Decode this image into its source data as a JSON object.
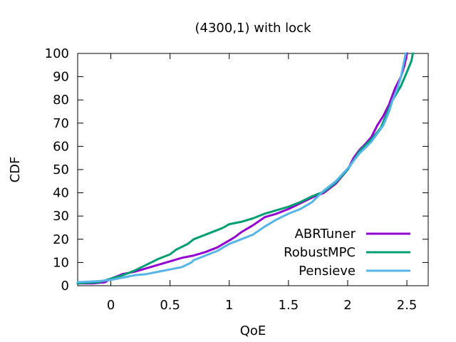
{
  "chart_data": {
    "type": "line",
    "title": "(4300,1) with lock",
    "xlabel": "QoE",
    "ylabel": "CDF",
    "xlim": [
      -0.28,
      2.68
    ],
    "ylim": [
      0,
      100
    ],
    "x_ticks": [
      "0",
      "0.5",
      "1",
      "1.5",
      "2",
      "2.5"
    ],
    "y_ticks": [
      "0",
      "10",
      "20",
      "30",
      "40",
      "50",
      "60",
      "70",
      "80",
      "90",
      "100"
    ],
    "x_tick_values": [
      0,
      0.5,
      1,
      1.5,
      2,
      2.5
    ],
    "y_tick_values": [
      0,
      10,
      20,
      30,
      40,
      50,
      60,
      70,
      80,
      90,
      100
    ],
    "grid": false,
    "legend_position": "bottom-right",
    "series": [
      {
        "name": "ABRTuner",
        "color": "#9400d3",
        "points": [
          [
            -0.28,
            1
          ],
          [
            -0.15,
            1
          ],
          [
            -0.05,
            1.5
          ],
          [
            0.0,
            3
          ],
          [
            0.05,
            4
          ],
          [
            0.1,
            5
          ],
          [
            0.2,
            6
          ],
          [
            0.3,
            7.5
          ],
          [
            0.4,
            9
          ],
          [
            0.5,
            10.5
          ],
          [
            0.6,
            12
          ],
          [
            0.7,
            13
          ],
          [
            0.8,
            14.5
          ],
          [
            0.9,
            16.5
          ],
          [
            1.0,
            19.5
          ],
          [
            1.05,
            21
          ],
          [
            1.1,
            23
          ],
          [
            1.2,
            26
          ],
          [
            1.3,
            29.5
          ],
          [
            1.4,
            31
          ],
          [
            1.5,
            33
          ],
          [
            1.6,
            35.5
          ],
          [
            1.7,
            38
          ],
          [
            1.8,
            40
          ],
          [
            1.9,
            44
          ],
          [
            2.0,
            50
          ],
          [
            2.05,
            55
          ],
          [
            2.1,
            58.5
          ],
          [
            2.15,
            61
          ],
          [
            2.2,
            64
          ],
          [
            2.25,
            69
          ],
          [
            2.3,
            73
          ],
          [
            2.35,
            78
          ],
          [
            2.4,
            85
          ],
          [
            2.45,
            90
          ],
          [
            2.48,
            95
          ],
          [
            2.5,
            100
          ]
        ]
      },
      {
        "name": "RobustMPC",
        "color": "#009e73",
        "points": [
          [
            -0.28,
            1
          ],
          [
            -0.1,
            1.5
          ],
          [
            0.0,
            3
          ],
          [
            0.1,
            4.5
          ],
          [
            0.2,
            6.5
          ],
          [
            0.3,
            9
          ],
          [
            0.4,
            11.5
          ],
          [
            0.5,
            13.5
          ],
          [
            0.55,
            15.5
          ],
          [
            0.65,
            18
          ],
          [
            0.7,
            20
          ],
          [
            0.8,
            22
          ],
          [
            0.9,
            24
          ],
          [
            0.95,
            25
          ],
          [
            1.0,
            26.5
          ],
          [
            1.1,
            27.5
          ],
          [
            1.2,
            29
          ],
          [
            1.3,
            31
          ],
          [
            1.4,
            32.5
          ],
          [
            1.5,
            34
          ],
          [
            1.6,
            36
          ],
          [
            1.7,
            38.5
          ],
          [
            1.8,
            40.5
          ],
          [
            1.9,
            44.5
          ],
          [
            2.0,
            50
          ],
          [
            2.05,
            54
          ],
          [
            2.1,
            58
          ],
          [
            2.2,
            63
          ],
          [
            2.28,
            68
          ],
          [
            2.32,
            73
          ],
          [
            2.38,
            80
          ],
          [
            2.45,
            86
          ],
          [
            2.5,
            92
          ],
          [
            2.54,
            97
          ],
          [
            2.55,
            100
          ]
        ]
      },
      {
        "name": "Pensieve",
        "color": "#56b4e9",
        "points": [
          [
            -0.28,
            1.5
          ],
          [
            -0.1,
            2
          ],
          [
            0.0,
            2.5
          ],
          [
            0.1,
            3.5
          ],
          [
            0.2,
            4.5
          ],
          [
            0.3,
            5
          ],
          [
            0.4,
            6
          ],
          [
            0.5,
            7
          ],
          [
            0.6,
            8
          ],
          [
            0.68,
            10
          ],
          [
            0.7,
            11
          ],
          [
            0.8,
            13
          ],
          [
            0.9,
            15
          ],
          [
            1.0,
            18
          ],
          [
            1.1,
            20
          ],
          [
            1.2,
            22
          ],
          [
            1.3,
            25.5
          ],
          [
            1.4,
            28.5
          ],
          [
            1.5,
            31
          ],
          [
            1.6,
            33
          ],
          [
            1.7,
            36
          ],
          [
            1.8,
            41
          ],
          [
            1.9,
            45
          ],
          [
            2.0,
            50.5
          ],
          [
            2.1,
            57
          ],
          [
            2.2,
            62
          ],
          [
            2.3,
            69
          ],
          [
            2.35,
            75
          ],
          [
            2.38,
            80
          ],
          [
            2.42,
            85
          ],
          [
            2.45,
            90
          ],
          [
            2.47,
            95
          ],
          [
            2.49,
            100
          ]
        ]
      }
    ]
  }
}
